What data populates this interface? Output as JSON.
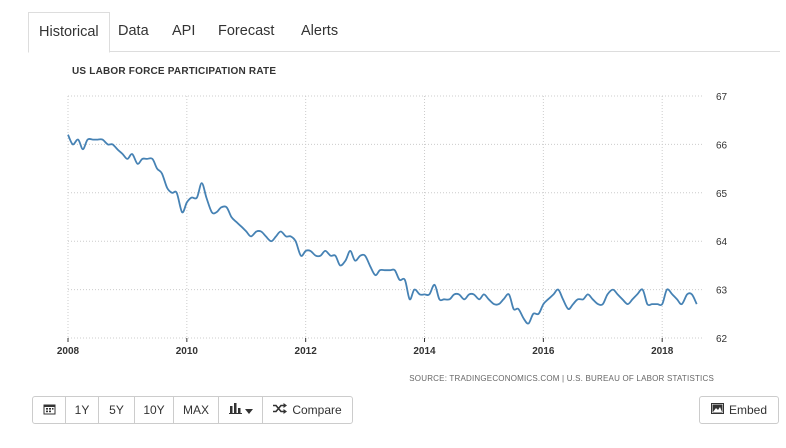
{
  "tabs": [
    "Historical",
    "Data",
    "API",
    "Forecast",
    "Alerts"
  ],
  "toolbar": {
    "range_buttons": [
      "1Y",
      "5Y",
      "10Y",
      "MAX"
    ],
    "compare_label": "Compare",
    "embed_label": "Embed"
  },
  "source_text": "SOURCE: TRADINGECONOMICS.COM | U.S. BUREAU OF LABOR STATISTICS",
  "colors": {
    "line": "#4682b4",
    "grid": "#cccccc"
  },
  "chart_data": {
    "type": "line",
    "title": "US LABOR FORCE PARTICIPATION RATE",
    "xlabel": "",
    "ylabel": "",
    "xlim": [
      2008.0,
      2018.67
    ],
    "ylim": [
      62,
      67
    ],
    "x_ticks": [
      "2008",
      "2010",
      "2012",
      "2014",
      "2016",
      "2018"
    ],
    "y_ticks": [
      "62",
      "63",
      "64",
      "65",
      "66",
      "67"
    ],
    "y_axis_position": "right",
    "grid": true,
    "legend": "none",
    "series": [
      {
        "x": [
          2008.0,
          2008.08,
          2008.17,
          2008.25,
          2008.33,
          2008.42,
          2008.5,
          2008.58,
          2008.67,
          2008.75,
          2008.83,
          2008.92,
          2009.0,
          2009.08,
          2009.17,
          2009.25,
          2009.33,
          2009.42,
          2009.5,
          2009.58,
          2009.67,
          2009.75,
          2009.83,
          2009.92,
          2010.0,
          2010.08,
          2010.17,
          2010.25,
          2010.33,
          2010.42,
          2010.5,
          2010.58,
          2010.67,
          2010.75,
          2010.83,
          2010.92,
          2011.0,
          2011.08,
          2011.17,
          2011.25,
          2011.33,
          2011.42,
          2011.5,
          2011.58,
          2011.67,
          2011.75,
          2011.83,
          2011.92,
          2012.0,
          2012.08,
          2012.17,
          2012.25,
          2012.33,
          2012.42,
          2012.5,
          2012.58,
          2012.67,
          2012.75,
          2012.83,
          2012.92,
          2013.0,
          2013.08,
          2013.17,
          2013.25,
          2013.33,
          2013.42,
          2013.5,
          2013.58,
          2013.67,
          2013.75,
          2013.83,
          2013.92,
          2014.0,
          2014.08,
          2014.17,
          2014.25,
          2014.33,
          2014.42,
          2014.5,
          2014.58,
          2014.67,
          2014.75,
          2014.83,
          2014.92,
          2015.0,
          2015.08,
          2015.17,
          2015.25,
          2015.33,
          2015.42,
          2015.5,
          2015.58,
          2015.67,
          2015.75,
          2015.83,
          2015.92,
          2016.0,
          2016.08,
          2016.17,
          2016.25,
          2016.33,
          2016.42,
          2016.5,
          2016.58,
          2016.67,
          2016.75,
          2016.83,
          2016.92,
          2017.0,
          2017.08,
          2017.17,
          2017.25,
          2017.33,
          2017.42,
          2017.5,
          2017.58,
          2017.67,
          2017.75,
          2017.83,
          2017.92,
          2018.0,
          2018.08,
          2018.17,
          2018.25,
          2018.33,
          2018.42,
          2018.5,
          2018.58
        ],
        "values": [
          66.2,
          66.0,
          66.1,
          65.9,
          66.1,
          66.1,
          66.1,
          66.1,
          66.0,
          66.0,
          65.9,
          65.8,
          65.7,
          65.8,
          65.6,
          65.7,
          65.7,
          65.7,
          65.5,
          65.4,
          65.1,
          65.0,
          65.0,
          64.6,
          64.8,
          64.9,
          64.9,
          65.2,
          64.9,
          64.6,
          64.6,
          64.7,
          64.7,
          64.5,
          64.4,
          64.3,
          64.2,
          64.1,
          64.2,
          64.2,
          64.1,
          64.0,
          64.1,
          64.2,
          64.1,
          64.1,
          64.0,
          63.7,
          63.8,
          63.8,
          63.7,
          63.7,
          63.8,
          63.7,
          63.7,
          63.5,
          63.6,
          63.8,
          63.6,
          63.7,
          63.7,
          63.5,
          63.3,
          63.4,
          63.4,
          63.4,
          63.4,
          63.2,
          63.2,
          62.8,
          63.0,
          62.9,
          62.9,
          62.9,
          63.1,
          62.8,
          62.8,
          62.8,
          62.9,
          62.9,
          62.8,
          62.9,
          62.9,
          62.8,
          62.9,
          62.8,
          62.7,
          62.7,
          62.8,
          62.9,
          62.6,
          62.6,
          62.4,
          62.3,
          62.5,
          62.5,
          62.7,
          62.8,
          62.9,
          63.0,
          62.8,
          62.6,
          62.7,
          62.8,
          62.8,
          62.9,
          62.8,
          62.7,
          62.7,
          62.9,
          63.0,
          62.9,
          62.8,
          62.7,
          62.8,
          62.9,
          63.0,
          62.7,
          62.7,
          62.7,
          62.7,
          63.0,
          62.9,
          62.8,
          62.7,
          62.9,
          62.9,
          62.7
        ]
      }
    ]
  }
}
